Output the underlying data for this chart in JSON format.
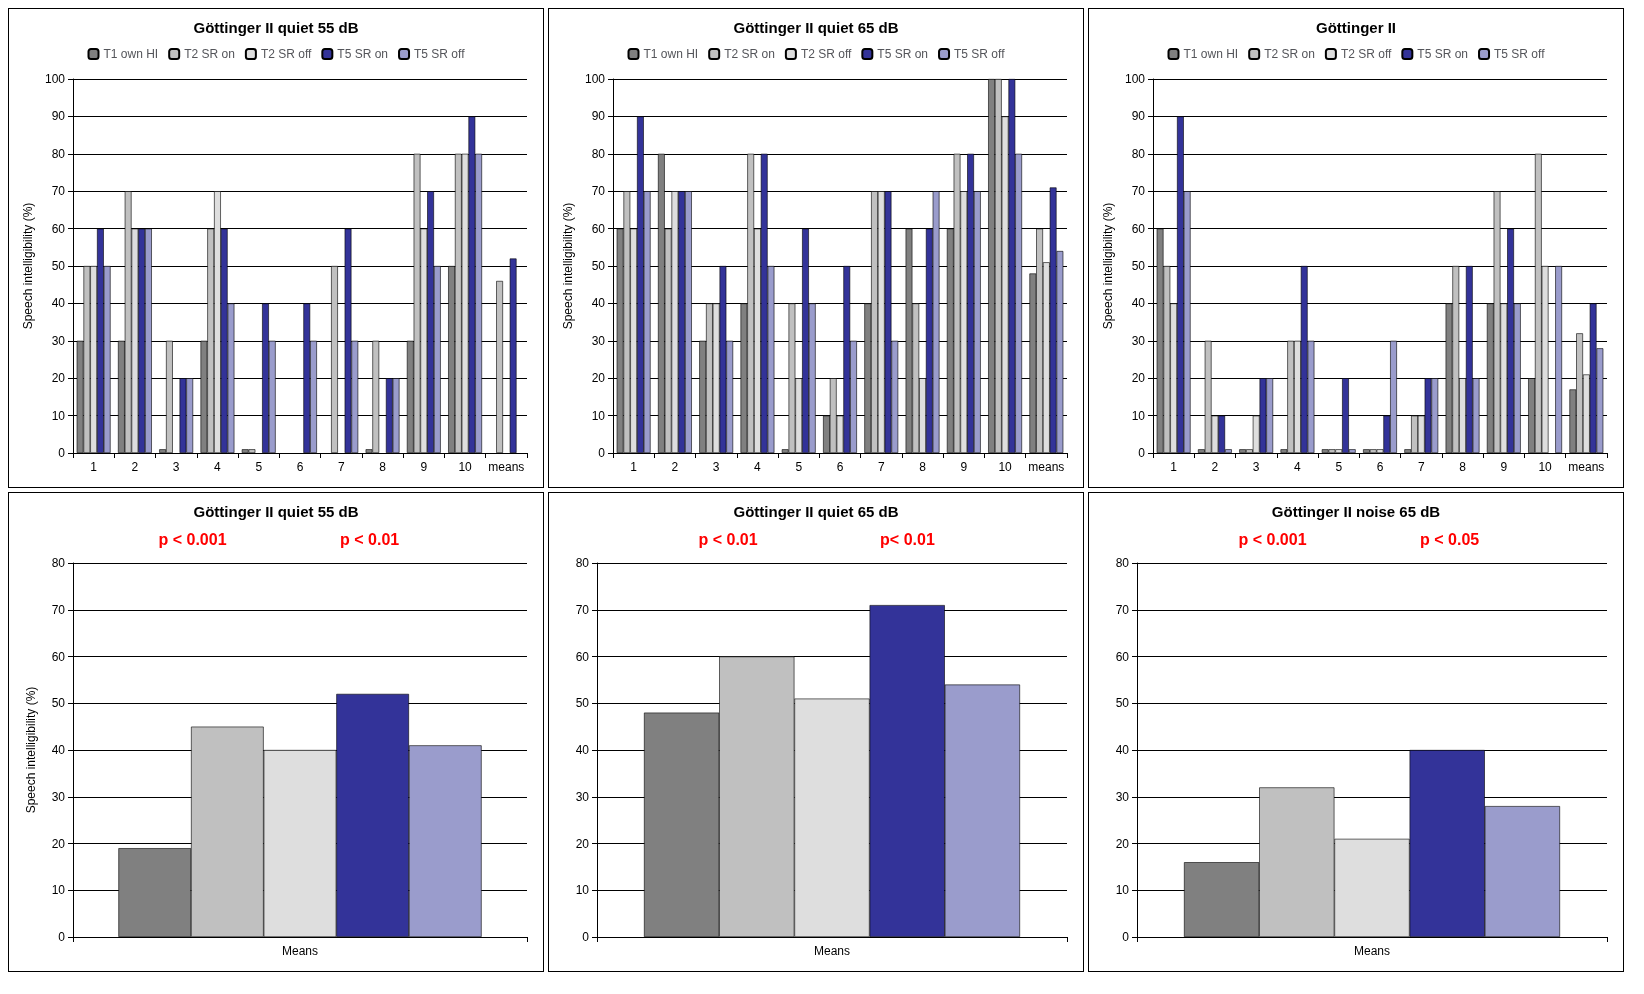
{
  "chart_data": [
    {
      "type": "bar",
      "title": "Göttinger II quiet 55 dB",
      "ylabel": "Speech intelligibility (%)",
      "categories": [
        "1",
        "2",
        "3",
        "4",
        "5",
        "6",
        "7",
        "8",
        "9",
        "10",
        "means"
      ],
      "ylim": [
        0,
        100
      ],
      "yticks": [
        0,
        10,
        20,
        30,
        40,
        50,
        60,
        70,
        80,
        90,
        100
      ],
      "grid": "y",
      "legend": "top",
      "series": [
        {
          "name": "T1 own HI",
          "color": "#808080",
          "values": [
            30,
            30,
            1,
            30,
            1,
            null,
            null,
            1,
            30,
            50,
            null
          ]
        },
        {
          "name": "T2 SR on",
          "color": "#c0c0c0",
          "values": [
            50,
            70,
            30,
            60,
            1,
            null,
            50,
            30,
            80,
            80,
            46
          ]
        },
        {
          "name": "T2 SR off",
          "color": "#dedede",
          "values": [
            50,
            60,
            null,
            70,
            null,
            null,
            null,
            null,
            60,
            80,
            null
          ]
        },
        {
          "name": "T5 SR on",
          "color": "#333399",
          "values": [
            60,
            60,
            20,
            60,
            40,
            40,
            60,
            20,
            70,
            90,
            52
          ]
        },
        {
          "name": "T5 SR off",
          "color": "#9a9ccc",
          "values": [
            50,
            60,
            20,
            40,
            30,
            30,
            30,
            20,
            50,
            80,
            null
          ]
        }
      ]
    },
    {
      "type": "bar",
      "title": "Göttinger II quiet 65 dB",
      "ylabel": "Speech intelligibility (%)",
      "categories": [
        "1",
        "2",
        "3",
        "4",
        "5",
        "6",
        "7",
        "8",
        "9",
        "10",
        "means"
      ],
      "ylim": [
        0,
        100
      ],
      "yticks": [
        0,
        10,
        20,
        30,
        40,
        50,
        60,
        70,
        80,
        90,
        100
      ],
      "grid": "y",
      "legend": "top",
      "series": [
        {
          "name": "T1 own HI",
          "color": "#808080",
          "values": [
            60,
            80,
            30,
            40,
            1,
            10,
            40,
            60,
            60,
            100,
            48
          ]
        },
        {
          "name": "T2 SR on",
          "color": "#c0c0c0",
          "values": [
            70,
            60,
            40,
            80,
            40,
            20,
            70,
            40,
            80,
            100,
            60
          ]
        },
        {
          "name": "T2 SR off",
          "color": "#dedede",
          "values": [
            60,
            70,
            40,
            60,
            20,
            10,
            70,
            20,
            70,
            90,
            51
          ]
        },
        {
          "name": "T5 SR on",
          "color": "#333399",
          "values": [
            90,
            70,
            50,
            80,
            60,
            50,
            70,
            60,
            80,
            100,
            71
          ]
        },
        {
          "name": "T5 SR off",
          "color": "#9a9ccc",
          "values": [
            70,
            70,
            30,
            50,
            40,
            30,
            30,
            70,
            70,
            80,
            54
          ]
        }
      ]
    },
    {
      "type": "bar",
      "title": "Göttinger II",
      "ylabel": "Speech intelligibility (%)",
      "categories": [
        "1",
        "2",
        "3",
        "4",
        "5",
        "6",
        "7",
        "8",
        "9",
        "10",
        "means"
      ],
      "ylim": [
        0,
        100
      ],
      "yticks": [
        0,
        10,
        20,
        30,
        40,
        50,
        60,
        70,
        80,
        90,
        100
      ],
      "grid": "y",
      "legend": "top",
      "series": [
        {
          "name": "T1 own HI",
          "color": "#808080",
          "values": [
            60,
            1,
            1,
            1,
            1,
            1,
            1,
            40,
            40,
            20,
            17
          ]
        },
        {
          "name": "T2 SR on",
          "color": "#c0c0c0",
          "values": [
            50,
            30,
            1,
            30,
            1,
            1,
            10,
            50,
            70,
            80,
            32
          ]
        },
        {
          "name": "T2 SR off",
          "color": "#dedede",
          "values": [
            40,
            10,
            10,
            30,
            1,
            1,
            10,
            20,
            40,
            50,
            21
          ]
        },
        {
          "name": "T5 SR on",
          "color": "#333399",
          "values": [
            90,
            10,
            20,
            50,
            20,
            10,
            20,
            50,
            60,
            null,
            40
          ]
        },
        {
          "name": "T5 SR off",
          "color": "#9a9ccc",
          "values": [
            70,
            1,
            20,
            30,
            1,
            30,
            20,
            20,
            40,
            50,
            28
          ]
        }
      ]
    },
    {
      "type": "bar",
      "title": "Göttinger II quiet 55 dB",
      "ylabel": "Speech intelligibility (%)",
      "categories": [
        "Means"
      ],
      "ylim": [
        0,
        80
      ],
      "yticks": [
        0,
        10,
        20,
        30,
        40,
        50,
        60,
        70,
        80
      ],
      "grid": "y",
      "annotations": [
        "p < 0.001",
        "p < 0.01"
      ],
      "series": [
        {
          "color": "#808080",
          "values": [
            19
          ]
        },
        {
          "color": "#c0c0c0",
          "values": [
            45
          ]
        },
        {
          "color": "#dedede",
          "values": [
            40
          ]
        },
        {
          "color": "#333399",
          "values": [
            52
          ]
        },
        {
          "color": "#9a9ccc",
          "values": [
            41
          ]
        }
      ]
    },
    {
      "type": "bar",
      "title": "Göttinger II quiet 65 dB",
      "categories": [
        "Means"
      ],
      "ylim": [
        0,
        80
      ],
      "yticks": [
        0,
        10,
        20,
        30,
        40,
        50,
        60,
        70,
        80
      ],
      "grid": "y",
      "annotations": [
        "p < 0.01",
        "p< 0.01"
      ],
      "series": [
        {
          "color": "#808080",
          "values": [
            48
          ]
        },
        {
          "color": "#c0c0c0",
          "values": [
            60
          ]
        },
        {
          "color": "#dedede",
          "values": [
            51
          ]
        },
        {
          "color": "#333399",
          "values": [
            71
          ]
        },
        {
          "color": "#9a9ccc",
          "values": [
            54
          ]
        }
      ]
    },
    {
      "type": "bar",
      "title": "Göttinger II noise 65 dB",
      "categories": [
        "Means"
      ],
      "ylim": [
        0,
        80
      ],
      "yticks": [
        0,
        10,
        20,
        30,
        40,
        50,
        60,
        70,
        80
      ],
      "grid": "y",
      "annotations": [
        "p < 0.001",
        "p < 0.05"
      ],
      "series": [
        {
          "color": "#808080",
          "values": [
            16
          ]
        },
        {
          "color": "#c0c0c0",
          "values": [
            32
          ]
        },
        {
          "color": "#dedede",
          "values": [
            21
          ]
        },
        {
          "color": "#333399",
          "values": [
            40
          ]
        },
        {
          "color": "#9a9ccc",
          "values": [
            28
          ]
        }
      ]
    }
  ]
}
